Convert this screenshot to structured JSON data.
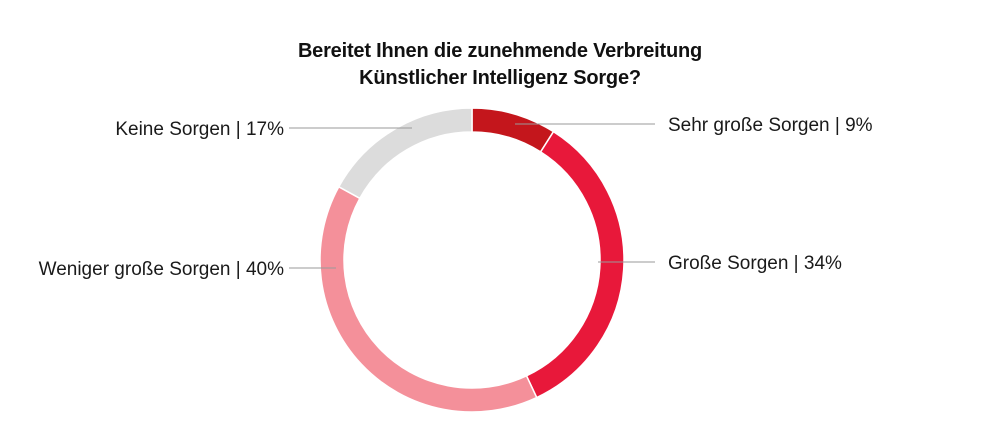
{
  "chart_data": {
    "type": "pie",
    "title": [
      "Bereitet Ihnen die zunehmende Verbreitung",
      "Künstlicher Intelligenz Sorge?"
    ],
    "segments": [
      {
        "name": "Sehr große Sorgen",
        "value": 9,
        "label": "Sehr große Sorgen | 9%",
        "color": "#c4161c"
      },
      {
        "name": "Große Sorgen",
        "value": 34,
        "label": "Große Sorgen | 34%",
        "color": "#e8183a"
      },
      {
        "name": "Weniger große Sorgen",
        "value": 40,
        "label": "Weniger große Sorgen | 40%",
        "color": "#f4909a"
      },
      {
        "name": "Keine Sorgen",
        "value": 17,
        "label": "Keine Sorgen | 17%",
        "color": "#dcdcdc"
      }
    ],
    "start": "12 o'clock",
    "direction": "clockwise",
    "shape": "donut"
  }
}
